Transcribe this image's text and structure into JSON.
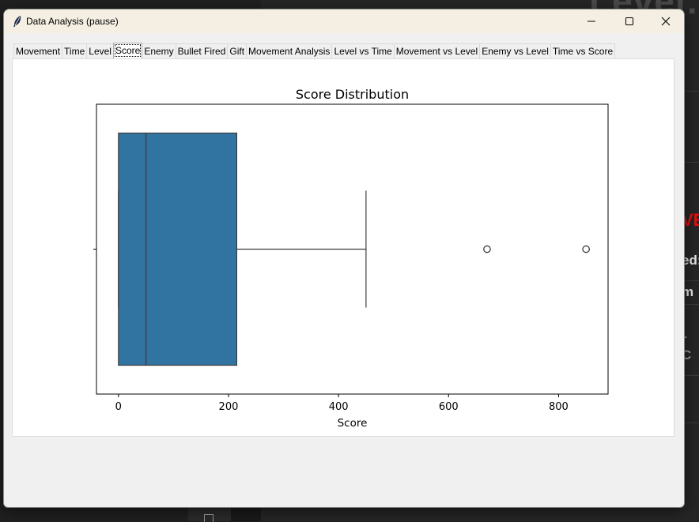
{
  "window": {
    "title": "Data Analysis (pause)"
  },
  "tabs": [
    {
      "label": "Movement",
      "active": false
    },
    {
      "label": "Time",
      "active": false
    },
    {
      "label": "Level",
      "active": false
    },
    {
      "label": "Score",
      "active": true
    },
    {
      "label": "Enemy",
      "active": false
    },
    {
      "label": "Bullet Fired",
      "active": false
    },
    {
      "label": "Gift",
      "active": false
    },
    {
      "label": "Movement Analysis",
      "active": false
    },
    {
      "label": "Level vs Time",
      "active": false
    },
    {
      "label": "Movement vs Level",
      "active": false
    },
    {
      "label": "Enemy vs Level",
      "active": false
    },
    {
      "label": "Time vs Score",
      "active": false
    }
  ],
  "background": {
    "big_text": "Level:",
    "fragments": [
      "VE",
      "ed:",
      "m",
      "r C"
    ]
  },
  "icons": {
    "app": "feather-icon",
    "minimize": "minimize-icon",
    "maximize": "maximize-icon",
    "close": "close-icon"
  },
  "colors": {
    "box_fill": "#3274a1",
    "box_edge": "#3d3d3d",
    "titlebar": "#f5efe3"
  },
  "chart_data": {
    "type": "box",
    "orientation": "horizontal",
    "title": "Score Distribution",
    "xlabel": "Score",
    "ylabel": "",
    "xlim": [
      -40,
      890
    ],
    "xticks": [
      0,
      200,
      400,
      600,
      800
    ],
    "stats": {
      "min": 0,
      "q1": 0,
      "median": 50,
      "q3": 215,
      "max": 450
    },
    "outliers": [
      670,
      850
    ],
    "grid": false,
    "legend": "none"
  }
}
